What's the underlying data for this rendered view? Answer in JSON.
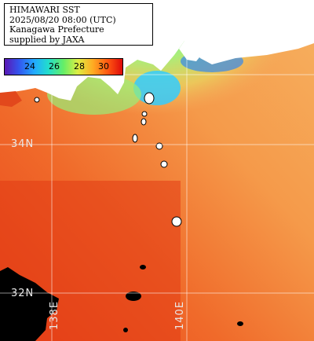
{
  "header": {
    "line1": "HIMAWARI SST",
    "line2": "2025/08/20 08:00 (UTC)",
    "line3": "Kanagawa Prefecture",
    "line4": "supplied by JAXA"
  },
  "colorbar": {
    "ticks": [
      "24",
      "26",
      "28",
      "30"
    ]
  },
  "gridlabels": {
    "lat34": "34N",
    "lat32": "32N",
    "lon138": "138E",
    "lon140": "140E"
  },
  "colors": {
    "land": "#ffffff",
    "cloud": "#000000",
    "warm": "#f06a2a",
    "hot": "#e23a14",
    "mild": "#f7a04a",
    "cool": "#a8ee7a",
    "cold": "#33ccff"
  }
}
